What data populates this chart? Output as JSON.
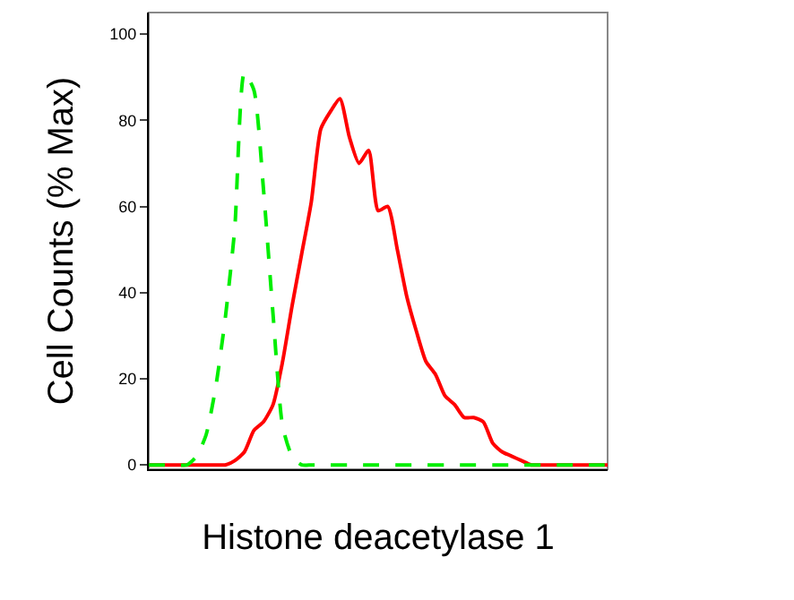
{
  "chart_data": {
    "type": "line",
    "xlabel": "Histone deacetylase 1",
    "ylabel": "Cell Counts (% Max)",
    "categories": [
      null,
      null,
      null,
      null,
      null,
      null,
      null,
      null,
      null,
      null,
      null,
      null,
      null,
      null,
      null,
      null,
      null,
      null,
      null,
      null,
      null,
      null,
      null,
      null,
      null,
      null,
      null,
      null,
      null,
      null,
      null,
      null,
      null,
      null,
      null,
      null,
      null,
      null,
      null,
      null,
      null,
      null,
      null,
      null,
      null,
      null,
      null,
      null,
      null
    ],
    "series": [
      {
        "color": "#00ee00",
        "line_style": "dashed",
        "values": [
          0,
          0,
          0,
          0,
          0,
          2,
          7,
          18,
          34,
          55,
          91,
          87,
          64,
          35,
          9,
          2,
          0,
          0,
          0,
          0,
          0,
          0,
          0,
          0,
          0,
          0,
          0,
          0,
          0,
          0,
          0,
          0,
          0,
          0,
          0,
          0,
          0,
          0,
          0,
          0,
          0,
          0,
          0,
          0,
          0,
          0,
          0,
          0,
          0
        ]
      },
      {
        "color": "#ff0000",
        "line_style": "solid",
        "values": [
          0,
          0,
          0,
          0,
          0,
          0,
          0,
          0,
          0,
          1,
          3,
          8,
          10,
          14,
          24,
          37,
          49,
          61,
          78,
          82,
          85,
          76,
          70,
          73,
          59,
          60,
          50,
          39,
          31,
          24,
          21,
          16,
          14,
          11,
          11,
          10,
          5,
          3,
          2,
          1,
          0,
          0,
          0,
          0,
          0,
          0,
          0,
          0,
          0
        ]
      }
    ],
    "ylim": [
      -1,
      105
    ],
    "yticks": [
      0,
      20,
      40,
      60,
      80,
      100
    ],
    "tick_labels": "y",
    "grid": false,
    "marker": "none"
  }
}
